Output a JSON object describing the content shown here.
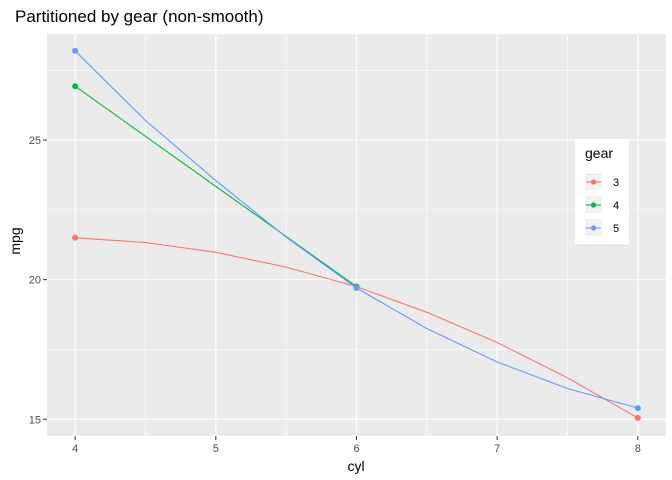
{
  "chart_data": {
    "type": "line",
    "title": "Partitioned by gear (non-smooth)",
    "xlabel": "cyl",
    "ylabel": "mpg",
    "xlim": [
      3.8,
      8.2
    ],
    "ylim": [
      14.4,
      28.8
    ],
    "x_ticks": [
      4,
      5,
      6,
      7,
      8
    ],
    "x_tick_labels": [
      "4",
      "5",
      "6",
      "7",
      "8"
    ],
    "y_ticks": [
      15,
      20,
      25
    ],
    "y_tick_labels": [
      "15",
      "20",
      "25"
    ],
    "grid": true,
    "legend": {
      "title": "gear",
      "position": "right"
    },
    "series": [
      {
        "name": "3",
        "color": "#F8766D",
        "points": [
          [
            4,
            21.5
          ],
          [
            4.5,
            21.33
          ],
          [
            5,
            20.98
          ],
          [
            5.5,
            20.45
          ],
          [
            6,
            19.75
          ],
          [
            6.5,
            18.83
          ],
          [
            7,
            17.75
          ],
          [
            7.5,
            16.48
          ],
          [
            8,
            15.05
          ]
        ],
        "markers": [
          [
            4,
            21.5
          ],
          [
            6,
            19.75
          ],
          [
            8,
            15.05
          ]
        ]
      },
      {
        "name": "4",
        "color": "#00BA38",
        "points": [
          [
            4,
            26.93
          ],
          [
            6,
            19.75
          ]
        ],
        "markers": [
          [
            4,
            26.93
          ],
          [
            6,
            19.75
          ]
        ]
      },
      {
        "name": "5",
        "color": "#619CFF",
        "points": [
          [
            4,
            28.2
          ],
          [
            4.5,
            25.7
          ],
          [
            5,
            23.55
          ],
          [
            5.5,
            21.52
          ],
          [
            6,
            19.7
          ],
          [
            6.5,
            18.25
          ],
          [
            7,
            17.05
          ],
          [
            7.5,
            16.1
          ],
          [
            8,
            15.4
          ]
        ],
        "markers": [
          [
            4,
            28.2
          ],
          [
            6,
            19.7
          ],
          [
            8,
            15.4
          ]
        ]
      }
    ]
  }
}
